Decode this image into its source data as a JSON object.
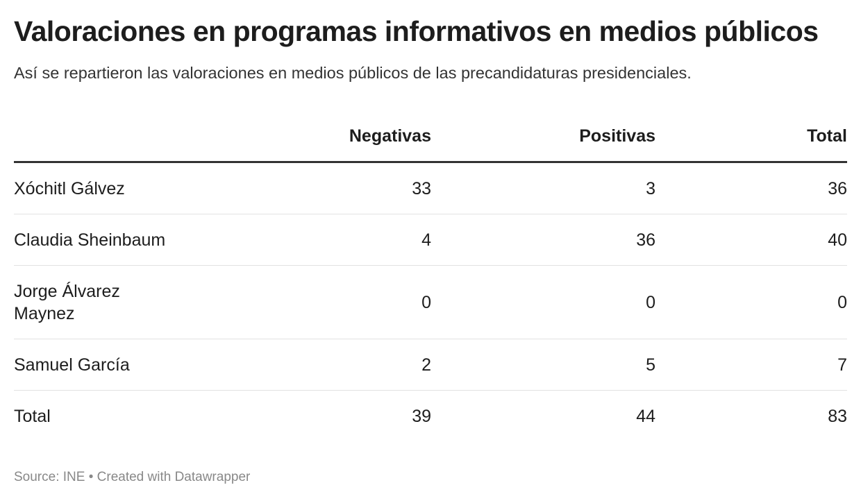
{
  "title": "Valoraciones en programas informativos en medios públicos",
  "subtitle": "Así se repartieron las valoraciones en medios públicos de las precandidaturas presidenciales.",
  "chart_data": {
    "type": "table",
    "columns": [
      "",
      "Negativas",
      "Positivas",
      "Total"
    ],
    "rows": [
      {
        "name": "Xóchitl Gálvez",
        "negativas": "33",
        "positivas": "3",
        "total": "36"
      },
      {
        "name": "Claudia Sheinbaum",
        "negativas": "4",
        "positivas": "36",
        "total": "40"
      },
      {
        "name": "Jorge Álvarez Maynez",
        "negativas": "0",
        "positivas": "0",
        "total": "0"
      },
      {
        "name": "Samuel García",
        "negativas": "2",
        "positivas": "5",
        "total": "7"
      },
      {
        "name": "Total",
        "negativas": "39",
        "positivas": "44",
        "total": "83"
      }
    ]
  },
  "footer": "Source: INE • Created with Datawrapper"
}
